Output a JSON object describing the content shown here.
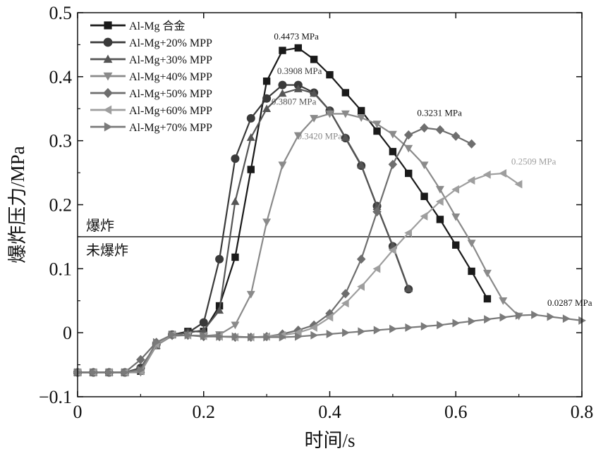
{
  "chart_data": {
    "type": "line",
    "title": "",
    "xlabel": "时间/s",
    "ylabel": "爆炸压力/MPa",
    "xlim": [
      0,
      0.8
    ],
    "ylim": [
      -0.1,
      0.5
    ],
    "xticks": [
      "0",
      "0.2",
      "0.4",
      "0.6",
      "0.8"
    ],
    "xtick_values": [
      0,
      0.2,
      0.4,
      0.6,
      0.8
    ],
    "yticks": [
      "−0.1",
      "0",
      "0.1",
      "0.2",
      "0.3",
      "0.4",
      "0.5"
    ],
    "ytick_values": [
      -0.1,
      0,
      0.1,
      0.2,
      0.3,
      0.4,
      0.5
    ],
    "grid": false,
    "legend_position": "top-left",
    "threshold": {
      "y": 0.15,
      "label_above": "爆炸",
      "label_below": "未爆炸"
    },
    "series": [
      {
        "name": "Al-Mg 合金",
        "color": "#1a1a1a",
        "marker": "square",
        "x": [
          0,
          0.025,
          0.05,
          0.075,
          0.1,
          0.125,
          0.15,
          0.175,
          0.2,
          0.225,
          0.25,
          0.275,
          0.3,
          0.325,
          0.35,
          0.375,
          0.4,
          0.425,
          0.45,
          0.475,
          0.5,
          0.525,
          0.55,
          0.575,
          0.6,
          0.625,
          0.65
        ],
        "y": [
          -0.062,
          -0.062,
          -0.062,
          -0.062,
          -0.06,
          -0.02,
          -0.003,
          0.002,
          0.002,
          0.042,
          0.118,
          0.255,
          0.393,
          0.441,
          0.445,
          0.427,
          0.403,
          0.375,
          0.347,
          0.315,
          0.283,
          0.249,
          0.213,
          0.177,
          0.137,
          0.096,
          0.053
        ]
      },
      {
        "name": "Al-Mg+20% MPP",
        "color": "#3a3a3a",
        "marker": "circle",
        "x": [
          0,
          0.025,
          0.05,
          0.075,
          0.1,
          0.125,
          0.15,
          0.175,
          0.2,
          0.225,
          0.25,
          0.275,
          0.3,
          0.325,
          0.35,
          0.375,
          0.4,
          0.425,
          0.45,
          0.475,
          0.5,
          0.525
        ],
        "y": [
          -0.062,
          -0.062,
          -0.062,
          -0.062,
          -0.055,
          -0.018,
          -0.003,
          0.0,
          0.016,
          0.115,
          0.272,
          0.335,
          0.366,
          0.387,
          0.387,
          0.375,
          0.347,
          0.304,
          0.261,
          0.198,
          0.135,
          0.068
        ]
      },
      {
        "name": "Al-Mg+30% MPP",
        "color": "#555555",
        "marker": "triangle-up",
        "x": [
          0,
          0.025,
          0.05,
          0.075,
          0.1,
          0.125,
          0.15,
          0.175,
          0.2,
          0.225,
          0.25,
          0.275,
          0.3,
          0.325,
          0.35,
          0.375,
          0.4,
          0.425,
          0.45,
          0.475,
          0.5,
          0.525
        ],
        "y": [
          -0.062,
          -0.062,
          -0.062,
          -0.062,
          -0.057,
          -0.02,
          -0.003,
          0.0,
          0.004,
          0.035,
          0.205,
          0.305,
          0.35,
          0.374,
          0.381,
          0.374,
          0.347,
          0.305,
          0.262,
          0.197,
          0.136,
          0.069
        ]
      },
      {
        "name": "Al-Mg+40% MPP",
        "color": "#8a8a8a",
        "marker": "triangle-down",
        "x": [
          0,
          0.025,
          0.05,
          0.075,
          0.1,
          0.125,
          0.15,
          0.175,
          0.2,
          0.225,
          0.25,
          0.275,
          0.3,
          0.325,
          0.35,
          0.375,
          0.4,
          0.425,
          0.45,
          0.475,
          0.5,
          0.525,
          0.55,
          0.575,
          0.6,
          0.625,
          0.65,
          0.675,
          0.7
        ],
        "y": [
          -0.062,
          -0.062,
          -0.062,
          -0.062,
          -0.062,
          -0.02,
          -0.005,
          -0.004,
          -0.005,
          -0.003,
          0.012,
          0.06,
          0.173,
          0.262,
          0.308,
          0.335,
          0.342,
          0.342,
          0.336,
          0.326,
          0.31,
          0.288,
          0.262,
          0.224,
          0.181,
          0.14,
          0.093,
          0.05,
          0.026
        ]
      },
      {
        "name": "Al-Mg+50% MPP",
        "color": "#6e6e6e",
        "marker": "diamond",
        "x": [
          0,
          0.025,
          0.05,
          0.075,
          0.1,
          0.125,
          0.15,
          0.175,
          0.2,
          0.225,
          0.25,
          0.275,
          0.3,
          0.325,
          0.35,
          0.375,
          0.4,
          0.425,
          0.45,
          0.475,
          0.5,
          0.525,
          0.55,
          0.575,
          0.6,
          0.625
        ],
        "y": [
          -0.062,
          -0.062,
          -0.062,
          -0.062,
          -0.042,
          -0.015,
          -0.004,
          -0.004,
          -0.006,
          -0.006,
          -0.007,
          -0.007,
          -0.006,
          -0.002,
          0.004,
          0.012,
          0.03,
          0.061,
          0.115,
          0.189,
          0.263,
          0.309,
          0.32,
          0.317,
          0.307,
          0.295
        ]
      },
      {
        "name": "Al-Mg+60% MPP",
        "color": "#9e9e9e",
        "marker": "triangle-left",
        "x": [
          0,
          0.025,
          0.05,
          0.075,
          0.1,
          0.125,
          0.15,
          0.175,
          0.2,
          0.225,
          0.25,
          0.275,
          0.3,
          0.325,
          0.35,
          0.375,
          0.4,
          0.425,
          0.45,
          0.475,
          0.5,
          0.525,
          0.55,
          0.575,
          0.6,
          0.625,
          0.65,
          0.675,
          0.7
        ],
        "y": [
          -0.062,
          -0.062,
          -0.062,
          -0.062,
          -0.06,
          -0.018,
          -0.003,
          -0.004,
          -0.005,
          -0.006,
          -0.007,
          -0.007,
          -0.006,
          -0.004,
          0.0,
          0.008,
          0.024,
          0.046,
          0.072,
          0.1,
          0.129,
          0.156,
          0.182,
          0.205,
          0.224,
          0.238,
          0.247,
          0.249,
          0.232
        ]
      },
      {
        "name": "Al-Mg+70% MPP",
        "color": "#7a7a7a",
        "marker": "triangle-right",
        "x": [
          0,
          0.025,
          0.05,
          0.075,
          0.1,
          0.125,
          0.15,
          0.175,
          0.2,
          0.225,
          0.25,
          0.275,
          0.3,
          0.325,
          0.35,
          0.375,
          0.4,
          0.425,
          0.45,
          0.475,
          0.5,
          0.525,
          0.55,
          0.575,
          0.6,
          0.625,
          0.65,
          0.675,
          0.7,
          0.725,
          0.75,
          0.775,
          0.8
        ],
        "y": [
          -0.062,
          -0.062,
          -0.062,
          -0.062,
          -0.058,
          -0.015,
          -0.003,
          -0.004,
          -0.005,
          -0.006,
          -0.006,
          -0.007,
          -0.007,
          -0.007,
          -0.006,
          -0.004,
          -0.002,
          0.0,
          0.002,
          0.004,
          0.006,
          0.008,
          0.01,
          0.012,
          0.015,
          0.018,
          0.021,
          0.024,
          0.027,
          0.028,
          0.025,
          0.022,
          0.019
        ]
      }
    ],
    "annotations": [
      {
        "text": "0.4473 MPa",
        "series": 0,
        "x": 0.345,
        "y": 0.4473
      },
      {
        "text": "0.3908 MPa",
        "series": 1,
        "x": 0.35,
        "y": 0.3908
      },
      {
        "text": "0.3807 MPa",
        "series": 2,
        "x": 0.35,
        "y": 0.3807
      },
      {
        "text": "0.3420 MPa",
        "series": 3,
        "x": 0.41,
        "y": 0.342
      },
      {
        "text": "0.3231 MPa",
        "series": 4,
        "x": 0.505,
        "y": 0.3231
      },
      {
        "text": "0.2509 MPa",
        "series": 5,
        "x": 0.66,
        "y": 0.2509
      },
      {
        "text": "0.0287 MPa",
        "series": 6,
        "x": 0.725,
        "y": 0.0287
      }
    ]
  }
}
